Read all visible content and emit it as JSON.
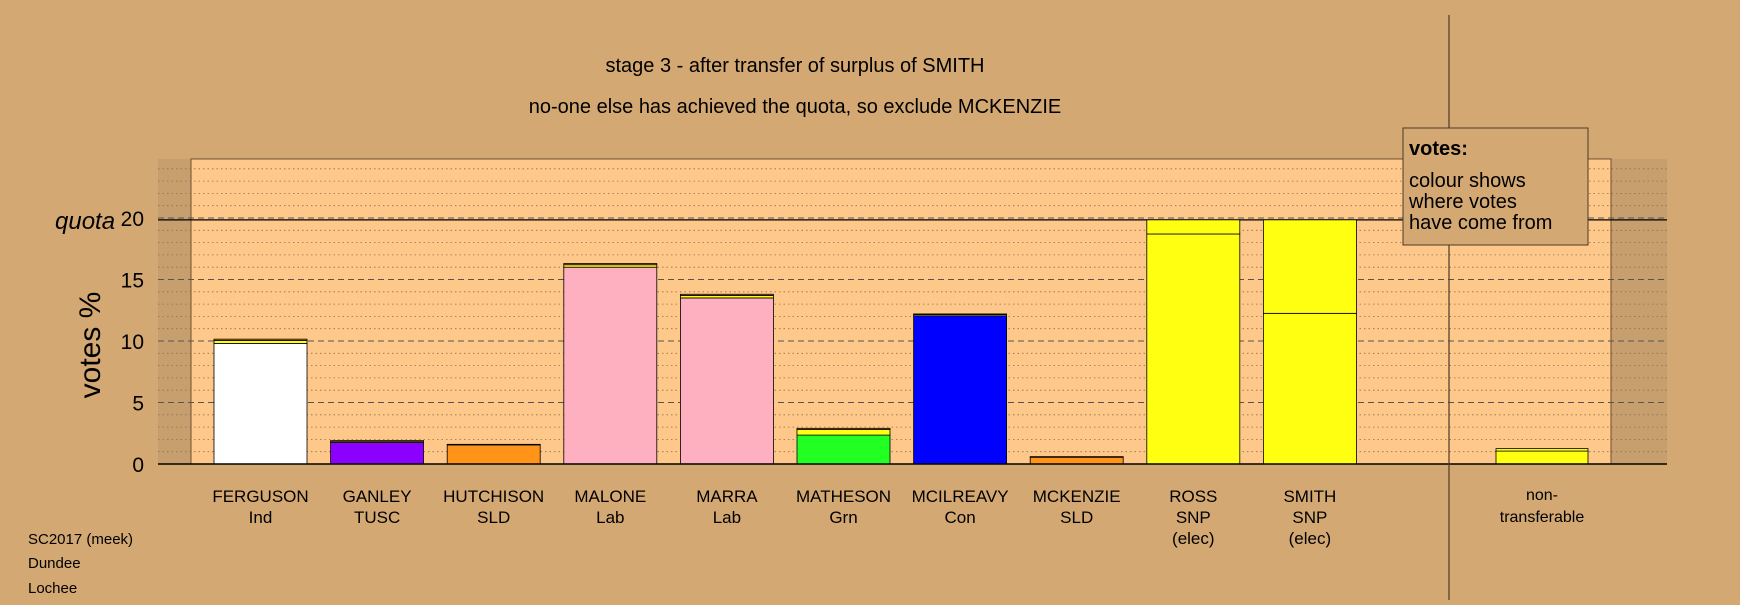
{
  "title_line1": "stage 3 - after transfer of surplus of SMITH",
  "title_line2": "no-one else has achieved the quota, so exclude MCKENZIE",
  "legend": {
    "heading": "votes:",
    "lines": [
      "colour shows",
      "where votes",
      "have come from"
    ]
  },
  "footer": [
    "SC2017 (meek)",
    "Dundee",
    "Lochee"
  ],
  "colors": {
    "background": "#d4a873",
    "plot": "#fdc88a",
    "ferguson": "#ffffff",
    "ganley": "#8b00ff",
    "hutchison": "#ff9419",
    "malone": "#ffb0c0",
    "marra": "#ffb0c0",
    "matheson": "#22ff22",
    "mcilreavy": "#0000ff",
    "mckenzie": "#ff9419",
    "snp": "#ffff11"
  },
  "chart_data": {
    "type": "bar",
    "stacked": true,
    "ylabel": "votes %",
    "quota_label": "quota",
    "quota": 19.85,
    "ylim": [
      0,
      24.8
    ],
    "yticks": [
      0,
      5,
      10,
      15,
      20
    ],
    "grid": "dashed at 5, dotted at 1",
    "categories": [
      {
        "name": "FERGUSON",
        "sub": "Ind"
      },
      {
        "name": "GANLEY",
        "sub": "TUSC"
      },
      {
        "name": "HUTCHISON",
        "sub": "SLD"
      },
      {
        "name": "MALONE",
        "sub": "Lab"
      },
      {
        "name": "MARRA",
        "sub": "Lab"
      },
      {
        "name": "MATHESON",
        "sub": "Grn"
      },
      {
        "name": "MCILREAVY",
        "sub": "Con"
      },
      {
        "name": "MCKENZIE",
        "sub": "SLD"
      },
      {
        "name": "ROSS",
        "sub": "SNP",
        "note": "(elec)"
      },
      {
        "name": "SMITH",
        "sub": "SNP",
        "note": "(elec)"
      }
    ],
    "bars": [
      {
        "segments": [
          {
            "value": 9.8,
            "color": "#ffffff"
          },
          {
            "value": 0.25,
            "color": "#ffff11"
          },
          {
            "value": 0.1,
            "color": "#ff9419"
          }
        ]
      },
      {
        "segments": [
          {
            "value": 1.75,
            "color": "#8b00ff"
          },
          {
            "value": 0.1,
            "color": "#ffff11"
          },
          {
            "value": 0.05,
            "color": "#ff9419"
          }
        ]
      },
      {
        "segments": [
          {
            "value": 1.55,
            "color": "#ff9419"
          },
          {
            "value": 0.05,
            "color": "#ffff11"
          }
        ]
      },
      {
        "segments": [
          {
            "value": 16.0,
            "color": "#ffb0c0"
          },
          {
            "value": 0.2,
            "color": "#ffff11"
          },
          {
            "value": 0.1,
            "color": "#ff9419"
          }
        ]
      },
      {
        "segments": [
          {
            "value": 13.5,
            "color": "#ffb0c0"
          },
          {
            "value": 0.2,
            "color": "#ffff11"
          },
          {
            "value": 0.1,
            "color": "#ff9419"
          }
        ]
      },
      {
        "segments": [
          {
            "value": 2.35,
            "color": "#22ff22"
          },
          {
            "value": 0.45,
            "color": "#ffff11"
          },
          {
            "value": 0.1,
            "color": "#ff9419"
          }
        ]
      },
      {
        "segments": [
          {
            "value": 12.05,
            "color": "#0000ff"
          },
          {
            "value": 0.1,
            "color": "#ffff11"
          },
          {
            "value": 0.05,
            "color": "#ff9419"
          }
        ]
      },
      {
        "segments": [
          {
            "value": 0.55,
            "color": "#ff9419"
          },
          {
            "value": 0.05,
            "color": "#ffff11"
          }
        ]
      },
      {
        "segments": [
          {
            "value": 18.7,
            "color": "#ffff11"
          },
          {
            "value": 1.15,
            "color": "#ffff11"
          }
        ]
      },
      {
        "segments": [
          {
            "value": 12.25,
            "color": "#ffff11"
          },
          {
            "value": 7.6,
            "color": "#ffff11"
          }
        ]
      }
    ],
    "nontransferable": {
      "label": [
        "non-",
        "transferable"
      ],
      "segments": [
        {
          "value": 1.05,
          "color": "#ffff11"
        },
        {
          "value": 0.2,
          "color": "#ffff11"
        }
      ]
    }
  }
}
